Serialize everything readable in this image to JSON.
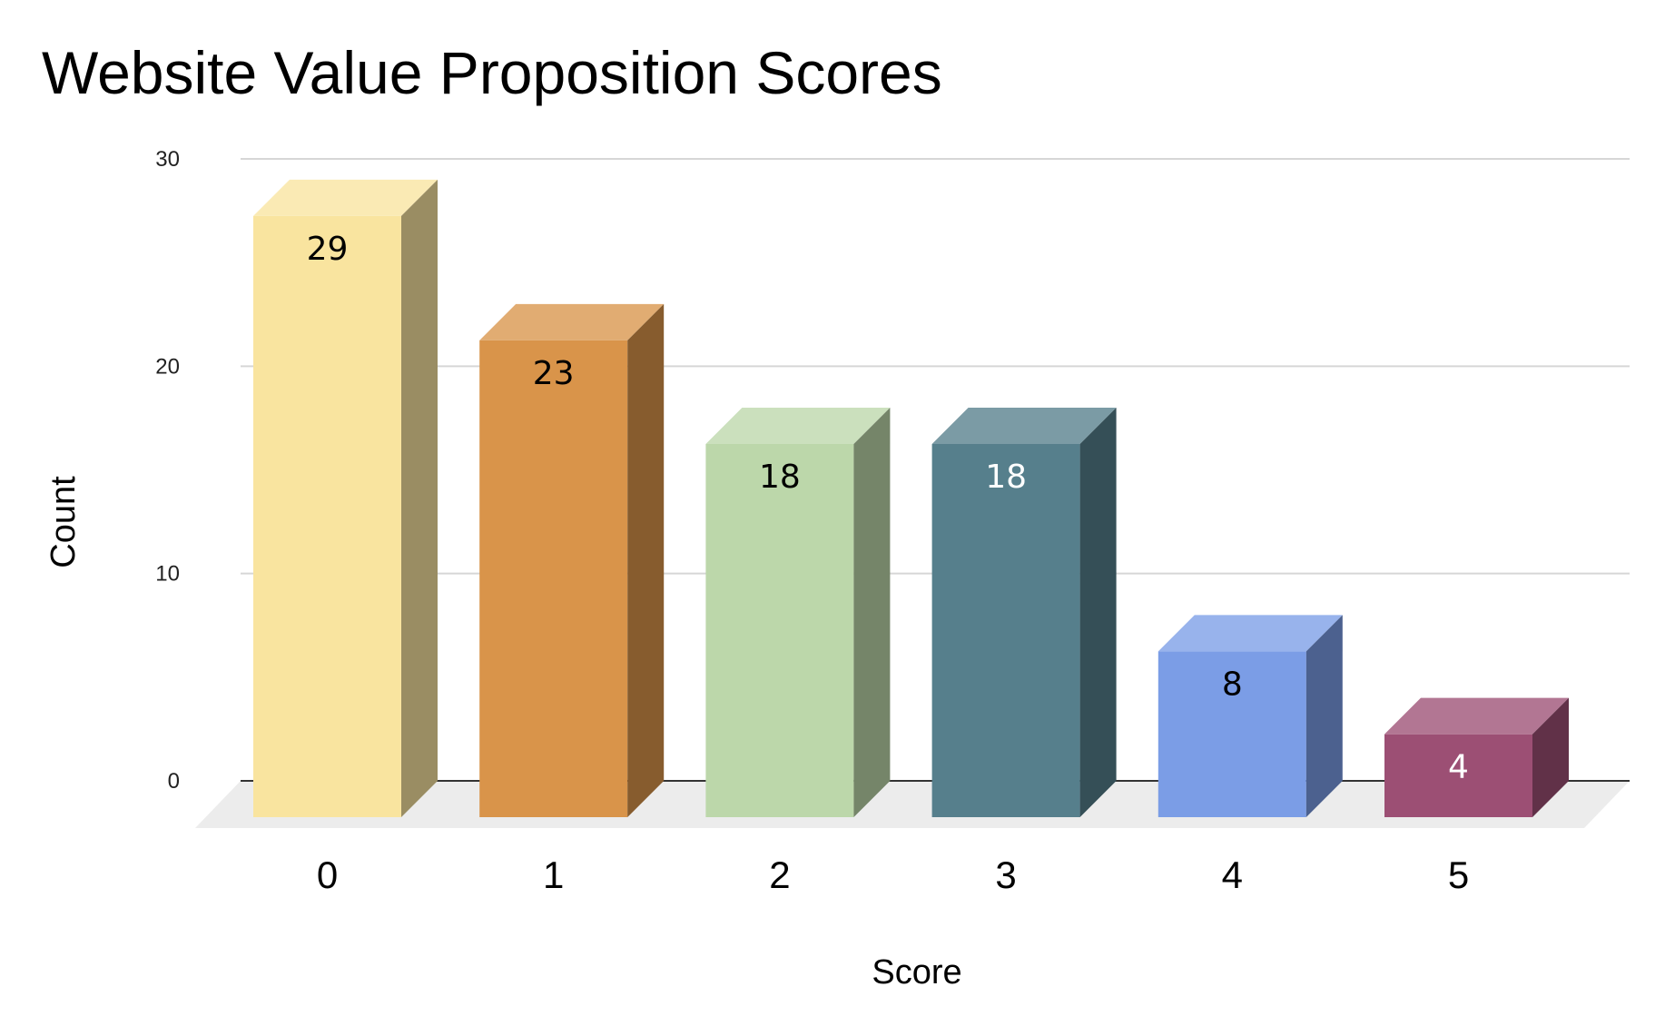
{
  "chart_data": {
    "type": "bar",
    "style": "3d",
    "title": "Website Value Proposition Scores",
    "xlabel": "Score",
    "ylabel": "Count",
    "categories": [
      "0",
      "1",
      "2",
      "3",
      "4",
      "5"
    ],
    "values": [
      29,
      23,
      18,
      18,
      8,
      4
    ],
    "data_labels": [
      "29",
      "23",
      "18",
      "18",
      "8",
      "4"
    ],
    "ylim": [
      0,
      30
    ],
    "yticks": [
      "0",
      "10",
      "20",
      "30"
    ],
    "grid": true,
    "legend": "none",
    "colors": [
      "#f9e49f",
      "#d9944a",
      "#bcd7aa",
      "#567f8c",
      "#7b9de6",
      "#9c4f74"
    ],
    "data_label_colors": [
      "#000000",
      "#000000",
      "#000000",
      "#ffffff",
      "#000000",
      "#ffffff"
    ]
  }
}
